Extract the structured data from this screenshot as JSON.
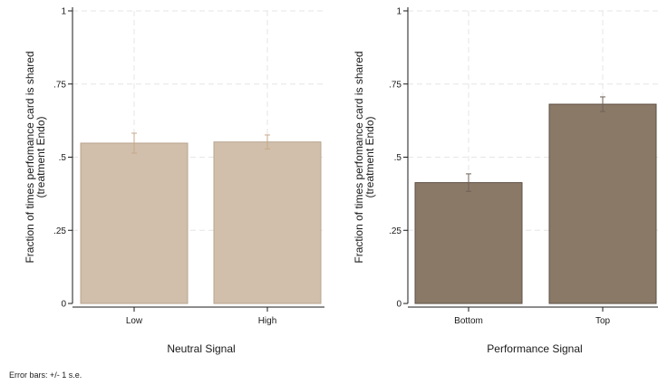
{
  "chart_data": [
    {
      "type": "bar",
      "categories": [
        "Low",
        "High"
      ],
      "values": [
        0.548,
        0.552
      ],
      "error": [
        0.034,
        0.024
      ],
      "xlabel": "Neutral Signal",
      "ylabel": "Fraction of times perfomance card is shared",
      "ylabel_sub": "(treatment Endo)",
      "ylim": [
        0,
        1
      ],
      "yticks": [
        "0",
        ".25",
        ".5",
        ".75",
        "1"
      ],
      "grid": true,
      "colors": {
        "bar": "#d1bfac",
        "bar_edge": "#b8a48f",
        "error_bar": "#c8a98a"
      }
    },
    {
      "type": "bar",
      "categories": [
        "Bottom",
        "Top"
      ],
      "values": [
        0.413,
        0.681
      ],
      "error": [
        0.03,
        0.025
      ],
      "xlabel": "Performance Signal",
      "ylabel": "Fraction of times perfomance card is shared",
      "ylabel_sub": "(treatment Endo)",
      "ylim": [
        0,
        1
      ],
      "yticks": [
        "0",
        ".25",
        ".5",
        ".75",
        "1"
      ],
      "grid": true,
      "colors": {
        "bar": "#8b7968",
        "bar_edge": "#5e5044",
        "error_bar": "#6e6257"
      }
    }
  ],
  "footnote": "Error bars: +/- 1 s.e."
}
